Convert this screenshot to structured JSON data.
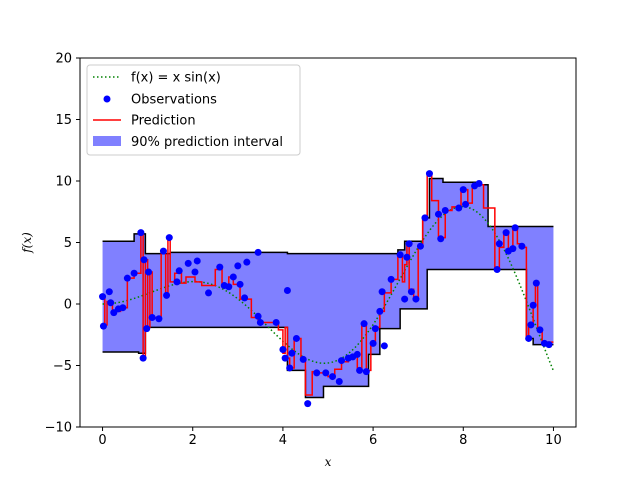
{
  "chart_data": {
    "type": "line",
    "title": "",
    "xlabel": "x",
    "ylabel": "f(x)",
    "xlim": [
      -0.5,
      10.5
    ],
    "ylim": [
      -10,
      20
    ],
    "xticks": [
      "0",
      "2",
      "4",
      "6",
      "8",
      "10"
    ],
    "yticks": [
      "−10",
      "−5",
      "0",
      "5",
      "10",
      "15",
      "20"
    ],
    "grid": false,
    "legend_position": "upper-left",
    "legend": [
      {
        "label": "f(x) = x sin(x)",
        "style": "dotted-line",
        "color": "#008000"
      },
      {
        "label": "Observations",
        "style": "marker",
        "color": "#0000ff"
      },
      {
        "label": "Prediction",
        "style": "line",
        "color": "#ff0000"
      },
      {
        "label": "90% prediction interval",
        "style": "patch",
        "color": "#8080ff"
      }
    ],
    "colors": {
      "true_function": "#008000",
      "observations": "#0000ff",
      "prediction": "#ff0000",
      "interval_fill": "#8080ff",
      "interval_edge": "#000000"
    },
    "upper_bound": [
      [
        0.0,
        5.1
      ],
      [
        0.7,
        5.1
      ],
      [
        0.7,
        5.7
      ],
      [
        0.95,
        5.7
      ],
      [
        0.95,
        4.1
      ],
      [
        1.5,
        4.1
      ],
      [
        1.5,
        4.2
      ],
      [
        4.1,
        4.2
      ],
      [
        4.1,
        4.1
      ],
      [
        6.55,
        4.1
      ],
      [
        6.55,
        4.4
      ],
      [
        6.7,
        4.4
      ],
      [
        6.7,
        5.1
      ],
      [
        7.1,
        5.1
      ],
      [
        7.1,
        7.0
      ],
      [
        7.25,
        7.0
      ],
      [
        7.25,
        10.2
      ],
      [
        7.55,
        10.2
      ],
      [
        7.55,
        9.9
      ],
      [
        8.3,
        9.9
      ],
      [
        8.3,
        9.7
      ],
      [
        8.55,
        9.7
      ],
      [
        8.55,
        6.3
      ],
      [
        10.0,
        6.3
      ]
    ],
    "lower_bound": [
      [
        0.0,
        -3.9
      ],
      [
        0.8,
        -3.9
      ],
      [
        0.8,
        -4.0
      ],
      [
        0.95,
        -4.0
      ],
      [
        0.95,
        -1.9
      ],
      [
        3.5,
        -1.9
      ],
      [
        3.5,
        -1.9
      ],
      [
        4.1,
        -1.9
      ],
      [
        4.1,
        -5.4
      ],
      [
        4.5,
        -5.4
      ],
      [
        4.5,
        -7.6
      ],
      [
        4.9,
        -7.6
      ],
      [
        4.9,
        -6.7
      ],
      [
        5.9,
        -6.7
      ],
      [
        5.9,
        -4.1
      ],
      [
        6.15,
        -4.1
      ],
      [
        6.15,
        -2.0
      ],
      [
        6.6,
        -2.0
      ],
      [
        6.6,
        -0.4
      ],
      [
        7.2,
        -0.4
      ],
      [
        7.2,
        2.8
      ],
      [
        9.4,
        2.8
      ],
      [
        9.4,
        -2.8
      ],
      [
        9.55,
        -2.8
      ],
      [
        9.55,
        -3.3
      ],
      [
        10.0,
        -3.3
      ]
    ],
    "prediction": [
      [
        0.0,
        0.6
      ],
      [
        0.05,
        0.6
      ],
      [
        0.05,
        -1.7
      ],
      [
        0.1,
        -1.7
      ],
      [
        0.1,
        0.2
      ],
      [
        0.22,
        0.2
      ],
      [
        0.22,
        -0.6
      ],
      [
        0.4,
        -0.6
      ],
      [
        0.4,
        -0.3
      ],
      [
        0.55,
        -0.3
      ],
      [
        0.55,
        2.1
      ],
      [
        0.7,
        2.1
      ],
      [
        0.7,
        2.5
      ],
      [
        0.85,
        2.5
      ],
      [
        0.85,
        5.8
      ],
      [
        0.9,
        5.8
      ],
      [
        0.9,
        -4.4
      ],
      [
        0.95,
        -4.4
      ],
      [
        0.95,
        3.6
      ],
      [
        1.0,
        3.6
      ],
      [
        1.0,
        -1.9
      ],
      [
        1.05,
        -1.9
      ],
      [
        1.05,
        2.6
      ],
      [
        1.1,
        2.6
      ],
      [
        1.1,
        -1.1
      ],
      [
        1.2,
        -1.1
      ],
      [
        1.2,
        -1.2
      ],
      [
        1.3,
        -1.2
      ],
      [
        1.3,
        4.3
      ],
      [
        1.4,
        4.3
      ],
      [
        1.4,
        0.7
      ],
      [
        1.45,
        0.7
      ],
      [
        1.45,
        5.4
      ],
      [
        1.5,
        5.4
      ],
      [
        1.5,
        1.8
      ],
      [
        1.6,
        1.8
      ],
      [
        1.6,
        2.5
      ],
      [
        1.75,
        2.5
      ],
      [
        1.75,
        1.7
      ],
      [
        1.85,
        1.7
      ],
      [
        1.85,
        2.2
      ],
      [
        2.05,
        2.2
      ],
      [
        2.05,
        1.8
      ],
      [
        2.2,
        1.8
      ],
      [
        2.2,
        1.5
      ],
      [
        2.5,
        1.5
      ],
      [
        2.5,
        2.8
      ],
      [
        2.65,
        2.8
      ],
      [
        2.65,
        1.4
      ],
      [
        2.8,
        1.4
      ],
      [
        2.8,
        2.2
      ],
      [
        2.9,
        2.2
      ],
      [
        2.9,
        1.6
      ],
      [
        3.05,
        1.6
      ],
      [
        3.05,
        0.4
      ],
      [
        3.3,
        0.4
      ],
      [
        3.3,
        -1.1
      ],
      [
        3.45,
        -1.1
      ],
      [
        3.45,
        -1.5
      ],
      [
        3.9,
        -1.5
      ],
      [
        3.9,
        -2.1
      ],
      [
        4.0,
        -2.1
      ],
      [
        4.0,
        -4.0
      ],
      [
        4.05,
        -4.0
      ],
      [
        4.05,
        -1.9
      ],
      [
        4.1,
        -1.9
      ],
      [
        4.1,
        -4.4
      ],
      [
        4.15,
        -4.4
      ],
      [
        4.15,
        -5.2
      ],
      [
        4.25,
        -5.2
      ],
      [
        4.25,
        -2.8
      ],
      [
        4.4,
        -2.8
      ],
      [
        4.4,
        -4.5
      ],
      [
        4.5,
        -4.5
      ],
      [
        4.5,
        -7.4
      ],
      [
        4.65,
        -7.4
      ],
      [
        4.65,
        -5.5
      ],
      [
        4.8,
        -5.5
      ],
      [
        4.8,
        -5.6
      ],
      [
        5.0,
        -5.6
      ],
      [
        5.0,
        -5.9
      ],
      [
        5.15,
        -5.9
      ],
      [
        5.15,
        -5.3
      ],
      [
        5.3,
        -5.3
      ],
      [
        5.3,
        -4.7
      ],
      [
        5.45,
        -4.7
      ],
      [
        5.45,
        -4.4
      ],
      [
        5.55,
        -4.4
      ],
      [
        5.55,
        -4.1
      ],
      [
        5.65,
        -4.1
      ],
      [
        5.65,
        -5.3
      ],
      [
        5.75,
        -5.3
      ],
      [
        5.75,
        -1.6
      ],
      [
        5.85,
        -1.6
      ],
      [
        5.85,
        -5.4
      ],
      [
        5.95,
        -5.4
      ],
      [
        5.95,
        -3.3
      ],
      [
        6.05,
        -3.3
      ],
      [
        6.05,
        -1.9
      ],
      [
        6.15,
        -1.9
      ],
      [
        6.15,
        -0.6
      ],
      [
        6.25,
        -0.6
      ],
      [
        6.25,
        0.9
      ],
      [
        6.4,
        0.9
      ],
      [
        6.4,
        2.0
      ],
      [
        6.55,
        2.0
      ],
      [
        6.55,
        4.0
      ],
      [
        6.65,
        4.0
      ],
      [
        6.65,
        1.8
      ],
      [
        6.7,
        1.8
      ],
      [
        6.7,
        3.2
      ],
      [
        6.75,
        3.2
      ],
      [
        6.75,
        4.8
      ],
      [
        6.8,
        4.8
      ],
      [
        6.8,
        1.2
      ],
      [
        6.9,
        1.2
      ],
      [
        6.9,
        0.4
      ],
      [
        7.0,
        0.4
      ],
      [
        7.0,
        4.7
      ],
      [
        7.1,
        4.7
      ],
      [
        7.1,
        7.0
      ],
      [
        7.2,
        7.0
      ],
      [
        7.2,
        10.6
      ],
      [
        7.3,
        10.6
      ],
      [
        7.3,
        8.4
      ],
      [
        7.45,
        8.4
      ],
      [
        7.45,
        5.4
      ],
      [
        7.6,
        5.4
      ],
      [
        7.6,
        7.6
      ],
      [
        7.75,
        7.6
      ],
      [
        7.75,
        7.9
      ],
      [
        7.95,
        7.9
      ],
      [
        7.95,
        9.3
      ],
      [
        8.1,
        9.3
      ],
      [
        8.1,
        8.2
      ],
      [
        8.2,
        8.2
      ],
      [
        8.2,
        9.6
      ],
      [
        8.35,
        9.6
      ],
      [
        8.35,
        9.7
      ],
      [
        8.45,
        9.7
      ],
      [
        8.45,
        7.8
      ],
      [
        8.7,
        7.8
      ],
      [
        8.7,
        2.8
      ],
      [
        8.8,
        2.8
      ],
      [
        8.8,
        4.6
      ],
      [
        8.9,
        4.6
      ],
      [
        8.9,
        5.9
      ],
      [
        9.0,
        5.9
      ],
      [
        9.0,
        4.4
      ],
      [
        9.1,
        4.4
      ],
      [
        9.1,
        6.2
      ],
      [
        9.2,
        6.2
      ],
      [
        9.2,
        4.9
      ],
      [
        9.3,
        4.9
      ],
      [
        9.3,
        4.7
      ],
      [
        9.35,
        4.7
      ],
      [
        9.35,
        4.6
      ],
      [
        9.4,
        4.6
      ],
      [
        9.4,
        -2.7
      ],
      [
        9.45,
        -2.7
      ],
      [
        9.45,
        -1.6
      ],
      [
        9.55,
        -1.6
      ],
      [
        9.55,
        0.0
      ],
      [
        9.6,
        0.0
      ],
      [
        9.6,
        1.7
      ],
      [
        9.65,
        1.7
      ],
      [
        9.65,
        -2.1
      ],
      [
        9.75,
        -2.1
      ],
      [
        9.75,
        -3.1
      ],
      [
        10.0,
        -3.1
      ]
    ],
    "observations": [
      [
        0.0,
        0.6
      ],
      [
        0.02,
        -1.8
      ],
      [
        0.15,
        1.0
      ],
      [
        0.18,
        0.1
      ],
      [
        0.25,
        -0.7
      ],
      [
        0.35,
        -0.4
      ],
      [
        0.45,
        -0.3
      ],
      [
        0.55,
        2.1
      ],
      [
        0.7,
        2.5
      ],
      [
        0.85,
        5.8
      ],
      [
        0.9,
        -4.4
      ],
      [
        0.92,
        3.6
      ],
      [
        0.98,
        -2.0
      ],
      [
        1.02,
        2.6
      ],
      [
        1.1,
        -1.1
      ],
      [
        1.25,
        -1.2
      ],
      [
        1.35,
        4.3
      ],
      [
        1.42,
        0.7
      ],
      [
        1.48,
        5.4
      ],
      [
        1.65,
        1.8
      ],
      [
        1.7,
        2.7
      ],
      [
        1.9,
        3.3
      ],
      [
        2.05,
        2.6
      ],
      [
        2.1,
        3.5
      ],
      [
        2.35,
        0.9
      ],
      [
        2.6,
        3.0
      ],
      [
        2.7,
        1.5
      ],
      [
        2.8,
        1.4
      ],
      [
        2.9,
        2.2
      ],
      [
        3.0,
        3.1
      ],
      [
        3.05,
        1.6
      ],
      [
        3.2,
        3.4
      ],
      [
        3.15,
        0.5
      ],
      [
        3.45,
        4.2
      ],
      [
        3.5,
        -1.5
      ],
      [
        3.45,
        -1.0
      ],
      [
        3.85,
        -1.5
      ],
      [
        4.0,
        -3.7
      ],
      [
        4.05,
        -4.4
      ],
      [
        4.1,
        1.1
      ],
      [
        4.15,
        -5.2
      ],
      [
        4.2,
        -4.0
      ],
      [
        4.3,
        -2.8
      ],
      [
        4.45,
        -4.5
      ],
      [
        4.55,
        -8.1
      ],
      [
        4.75,
        -5.6
      ],
      [
        4.95,
        -5.6
      ],
      [
        5.1,
        -5.9
      ],
      [
        5.25,
        -6.3
      ],
      [
        5.3,
        -4.6
      ],
      [
        5.45,
        -4.4
      ],
      [
        5.55,
        -4.3
      ],
      [
        5.65,
        -4.1
      ],
      [
        5.7,
        -5.4
      ],
      [
        5.8,
        -1.6
      ],
      [
        5.85,
        -5.5
      ],
      [
        6.0,
        -3.2
      ],
      [
        6.05,
        -2.0
      ],
      [
        6.15,
        -0.6
      ],
      [
        6.2,
        1.0
      ],
      [
        6.25,
        -3.4
      ],
      [
        6.4,
        2.0
      ],
      [
        6.6,
        4.0
      ],
      [
        6.7,
        0.4
      ],
      [
        6.75,
        3.8
      ],
      [
        6.8,
        4.9
      ],
      [
        6.85,
        1.0
      ],
      [
        6.95,
        0.4
      ],
      [
        7.05,
        4.7
      ],
      [
        7.15,
        7.0
      ],
      [
        7.25,
        10.6
      ],
      [
        7.45,
        7.3
      ],
      [
        7.5,
        5.3
      ],
      [
        7.6,
        7.6
      ],
      [
        7.9,
        7.8
      ],
      [
        8.0,
        9.3
      ],
      [
        8.05,
        8.1
      ],
      [
        8.25,
        9.6
      ],
      [
        8.35,
        9.8
      ],
      [
        8.75,
        2.8
      ],
      [
        8.8,
        4.9
      ],
      [
        8.95,
        5.8
      ],
      [
        9.0,
        4.3
      ],
      [
        9.1,
        4.5
      ],
      [
        9.15,
        6.2
      ],
      [
        9.3,
        4.7
      ],
      [
        9.45,
        -2.8
      ],
      [
        9.5,
        -1.7
      ],
      [
        9.55,
        -0.1
      ],
      [
        9.62,
        1.7
      ],
      [
        9.7,
        -2.1
      ],
      [
        9.8,
        -3.2
      ],
      [
        9.9,
        -3.3
      ]
    ]
  }
}
